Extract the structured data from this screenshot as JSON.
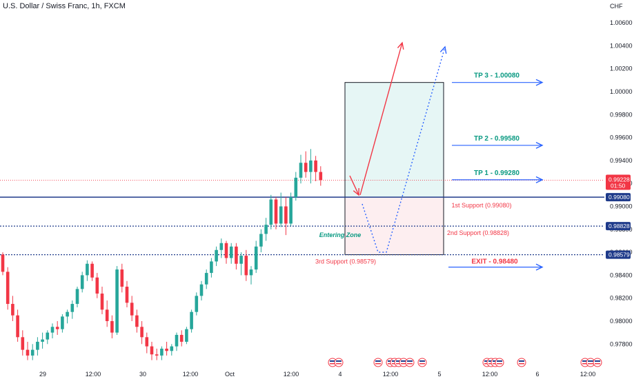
{
  "header": {
    "title": "U.S. Dollar / Swiss Franc, 1h, FXCM"
  },
  "price_axis": {
    "currency": "CHF",
    "ticks": [
      "1.00600",
      "1.00400",
      "1.00200",
      "1.00000",
      "0.99800",
      "0.99600",
      "0.99400",
      "0.99200",
      "0.99000",
      "0.98800",
      "0.98600",
      "0.98400",
      "0.98200",
      "0.98000",
      "0.97800"
    ],
    "badges": [
      {
        "label": "0.99228",
        "sub": "01:50",
        "color": "#f23645"
      },
      {
        "label": "0.99080",
        "color": "#1e3a8a"
      },
      {
        "label": "0.98828",
        "color": "#1e3a8a"
      },
      {
        "label": "0.98579",
        "color": "#1e3a8a"
      }
    ]
  },
  "time_axis": {
    "labels": [
      "29",
      "12:00",
      "30",
      "12:00",
      "Oct",
      "12:00",
      "4",
      "12:00",
      "5",
      "12:00",
      "6",
      "12:00"
    ]
  },
  "annotations": {
    "tp3": "TP 3 - 1.00080",
    "tp2": "TP 2 - 0.99580",
    "tp1": "TP 1 - 0.99280",
    "support1": "1st Support (0.99080)",
    "support2": "2nd Support (0.98828)",
    "support3": "3rd Support (0.98579)",
    "exit": "EXIT - 0.98480",
    "entering_zone": "Entering Zone"
  },
  "colors": {
    "up": "#26a69a",
    "down": "#f23645",
    "navy": "#1e3a8a",
    "tp": "#089981",
    "blue": "#2962ff"
  },
  "chart_data": {
    "type": "candlestick",
    "ylim": [
      0.9766,
      1.0074
    ],
    "candles": [
      [
        0.9858,
        0.986,
        0.984,
        0.9843
      ],
      [
        0.9843,
        0.9847,
        0.981,
        0.9815
      ],
      [
        0.9815,
        0.9822,
        0.98,
        0.9805
      ],
      [
        0.9805,
        0.981,
        0.9782,
        0.9786
      ],
      [
        0.9786,
        0.9792,
        0.977,
        0.9775
      ],
      [
        0.9775,
        0.9782,
        0.9766,
        0.977
      ],
      [
        0.977,
        0.978,
        0.9766,
        0.9775
      ],
      [
        0.9775,
        0.9786,
        0.977,
        0.9782
      ],
      [
        0.9782,
        0.979,
        0.9776,
        0.9784
      ],
      [
        0.9784,
        0.9792,
        0.978,
        0.979
      ],
      [
        0.979,
        0.9798,
        0.9785,
        0.9795
      ],
      [
        0.9795,
        0.98,
        0.9788,
        0.9793
      ],
      [
        0.9793,
        0.9806,
        0.979,
        0.9804
      ],
      [
        0.9804,
        0.981,
        0.9798,
        0.9808
      ],
      [
        0.9808,
        0.9818,
        0.9802,
        0.9815
      ],
      [
        0.9815,
        0.983,
        0.9812,
        0.9828
      ],
      [
        0.9828,
        0.9843,
        0.9825,
        0.984
      ],
      [
        0.984,
        0.9853,
        0.9835,
        0.985
      ],
      [
        0.985,
        0.9852,
        0.9835,
        0.9838
      ],
      [
        0.9838,
        0.9842,
        0.982,
        0.9824
      ],
      [
        0.9824,
        0.983,
        0.9806,
        0.981
      ],
      [
        0.981,
        0.9818,
        0.9795,
        0.98
      ],
      [
        0.98,
        0.9805,
        0.9785,
        0.979
      ],
      [
        0.979,
        0.9848,
        0.9788,
        0.9845
      ],
      [
        0.9845,
        0.985,
        0.9825,
        0.983
      ],
      [
        0.983,
        0.9835,
        0.9812,
        0.9816
      ],
      [
        0.9816,
        0.9822,
        0.98,
        0.9805
      ],
      [
        0.9805,
        0.981,
        0.979,
        0.9795
      ],
      [
        0.9795,
        0.98,
        0.978,
        0.9786
      ],
      [
        0.9786,
        0.979,
        0.9772,
        0.9778
      ],
      [
        0.9778,
        0.9782,
        0.9766,
        0.9771
      ],
      [
        0.9771,
        0.9776,
        0.9766,
        0.977
      ],
      [
        0.977,
        0.9778,
        0.9766,
        0.9776
      ],
      [
        0.9776,
        0.9782,
        0.977,
        0.9774
      ],
      [
        0.9774,
        0.978,
        0.977,
        0.9778
      ],
      [
        0.9778,
        0.979,
        0.9774,
        0.9788
      ],
      [
        0.9788,
        0.9792,
        0.9778,
        0.9782
      ],
      [
        0.9782,
        0.9795,
        0.978,
        0.9793
      ],
      [
        0.9793,
        0.981,
        0.979,
        0.9808
      ],
      [
        0.9808,
        0.9825,
        0.9805,
        0.9822
      ],
      [
        0.9822,
        0.9835,
        0.9818,
        0.9832
      ],
      [
        0.9832,
        0.9845,
        0.9828,
        0.9842
      ],
      [
        0.9842,
        0.9855,
        0.9838,
        0.9852
      ],
      [
        0.9852,
        0.9865,
        0.9848,
        0.9862
      ],
      [
        0.9862,
        0.9872,
        0.9855,
        0.9868
      ],
      [
        0.9868,
        0.987,
        0.985,
        0.9855
      ],
      [
        0.9855,
        0.9868,
        0.985,
        0.9865
      ],
      [
        0.9865,
        0.9868,
        0.9845,
        0.985
      ],
      [
        0.985,
        0.986,
        0.984,
        0.9857
      ],
      [
        0.9857,
        0.9862,
        0.9835,
        0.984
      ],
      [
        0.984,
        0.9848,
        0.9832,
        0.9845
      ],
      [
        0.9845,
        0.987,
        0.9842,
        0.9865
      ],
      [
        0.9865,
        0.988,
        0.986,
        0.9876
      ],
      [
        0.9876,
        0.989,
        0.987,
        0.9884
      ],
      [
        0.9884,
        0.991,
        0.988,
        0.9906
      ],
      [
        0.9906,
        0.9908,
        0.988,
        0.9885
      ],
      [
        0.9885,
        0.9912,
        0.9882,
        0.99
      ],
      [
        0.99,
        0.9908,
        0.9875,
        0.9885
      ],
      [
        0.9885,
        0.9912,
        0.9883,
        0.9908
      ],
      [
        0.9908,
        0.993,
        0.9905,
        0.9925
      ],
      [
        0.9925,
        0.9945,
        0.992,
        0.9938
      ],
      [
        0.9938,
        0.9948,
        0.9925,
        0.993
      ],
      [
        0.993,
        0.995,
        0.992,
        0.994
      ],
      [
        0.994,
        0.9944,
        0.9922,
        0.993
      ],
      [
        0.993,
        0.9935,
        0.9918,
        0.9923
      ]
    ]
  }
}
